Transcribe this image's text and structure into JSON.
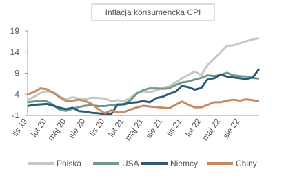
{
  "chart_data": {
    "type": "line",
    "title": "Inflacja konsumencka CPI",
    "categories": [
      "lis 19",
      null,
      null,
      "lut 20",
      null,
      null,
      "maj 20",
      null,
      null,
      "sie 20",
      null,
      null,
      "lis 20",
      null,
      null,
      "lut 21",
      null,
      null,
      "maj 21",
      null,
      null,
      "sie 21",
      null,
      null,
      "lis 21",
      null,
      null,
      "lut 22",
      null,
      null,
      "maj 22",
      null,
      null,
      "sie 22",
      null,
      null,
      null
    ],
    "series": [
      {
        "name": "Polska",
        "color": "#c6c6c2",
        "values": [
          2.6,
          3.4,
          4.3,
          4.7,
          4.6,
          3.4,
          2.9,
          3.3,
          3.0,
          2.9,
          3.2,
          3.1,
          3.0,
          2.4,
          2.6,
          2.4,
          3.2,
          4.3,
          4.7,
          4.4,
          5.0,
          5.5,
          5.9,
          6.8,
          7.8,
          8.6,
          9.4,
          8.5,
          11.0,
          12.4,
          13.9,
          15.5,
          15.6,
          16.1,
          16.6,
          17.0,
          17.3
        ]
      },
      {
        "name": "USA",
        "color": "#6f9a86",
        "values": [
          2.1,
          2.3,
          2.5,
          2.3,
          1.5,
          0.3,
          0.1,
          0.6,
          1.0,
          1.3,
          1.4,
          1.2,
          1.2,
          1.4,
          1.4,
          1.7,
          2.6,
          4.2,
          5.0,
          5.4,
          5.4,
          5.3,
          5.4,
          6.2,
          6.8,
          7.0,
          7.5,
          7.9,
          8.5,
          8.3,
          8.6,
          9.1,
          8.5,
          8.3,
          8.2,
          7.9,
          7.7
        ]
      },
      {
        "name": "Niemcy",
        "color": "#2e5a7a",
        "values": [
          1.2,
          1.5,
          1.6,
          1.7,
          1.3,
          0.8,
          0.5,
          0.8,
          0.0,
          -0.1,
          -0.4,
          -0.5,
          -0.7,
          -0.7,
          1.6,
          1.6,
          2.0,
          2.1,
          2.4,
          2.1,
          3.1,
          3.4,
          4.1,
          4.6,
          6.0,
          5.7,
          5.1,
          5.5,
          7.6,
          7.8,
          8.7,
          8.2,
          8.0,
          7.8,
          7.6,
          8.0,
          10.0
        ]
      },
      {
        "name": "Chiny",
        "color": "#c48a66",
        "values": [
          4.0,
          4.5,
          5.4,
          5.2,
          4.3,
          3.3,
          2.4,
          2.5,
          2.7,
          2.4,
          1.7,
          0.5,
          -0.5,
          0.2,
          -0.3,
          -0.2,
          0.4,
          0.9,
          1.3,
          1.1,
          1.0,
          0.8,
          0.7,
          1.5,
          2.3,
          1.5,
          0.9,
          0.9,
          1.5,
          2.1,
          2.1,
          2.5,
          2.7,
          2.5,
          2.8,
          2.6,
          2.4
        ]
      }
    ],
    "ylim": [
      -1,
      19
    ],
    "yticks": [
      -1,
      4,
      9,
      14,
      19
    ]
  }
}
